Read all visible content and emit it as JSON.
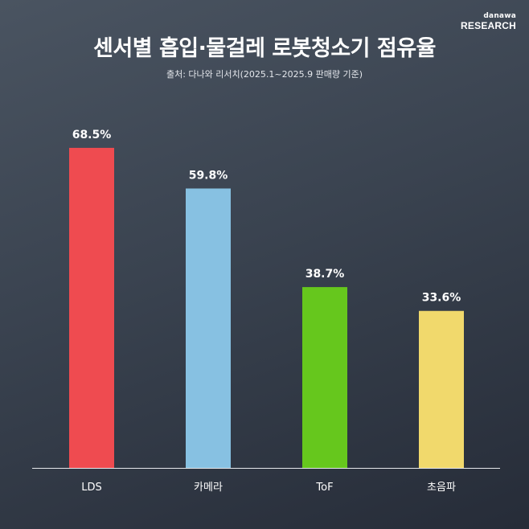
{
  "logo": {
    "top": "danawa",
    "bottom": "RESEARCH"
  },
  "header": {
    "title": "센서별 흡입·물걸레 로봇청소기 점유율",
    "subtitle": "출처: 다나와 리서치(2025.1~2025.9 판매량 기준)"
  },
  "chart_data": {
    "type": "bar",
    "title": "센서별 흡입·물걸레 로봇청소기 점유율",
    "subtitle": "출처: 다나와 리서치(2025.1~2025.9 판매량 기준)",
    "categories": [
      "LDS",
      "카메라",
      "ToF",
      "초음파"
    ],
    "values": [
      68.5,
      59.8,
      38.7,
      33.6
    ],
    "value_labels": [
      "68.5%",
      "59.8%",
      "38.7%",
      "33.6%"
    ],
    "colors": [
      "#ef4b50",
      "#87c1e2",
      "#66c71d",
      "#f1d96c"
    ],
    "ylim": [
      0,
      69
    ],
    "grid": false,
    "legend": "none"
  }
}
